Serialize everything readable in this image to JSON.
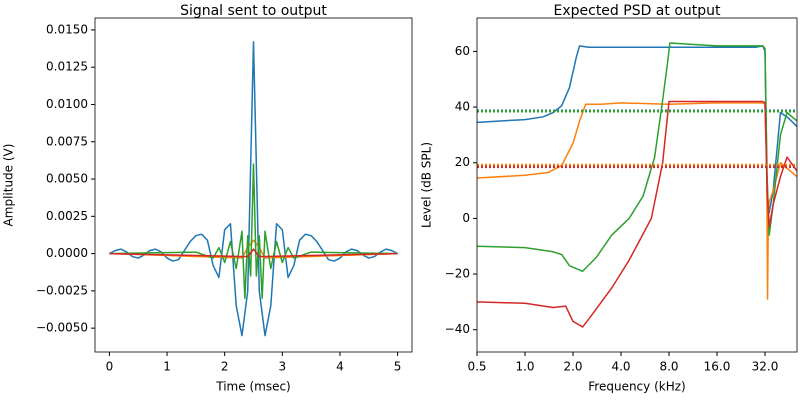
{
  "chart_data": [
    {
      "type": "line",
      "title": "Signal sent to output",
      "xlabel": "Time (msec)",
      "ylabel": "Amplitude (V)",
      "xlim": [
        -0.25,
        5.25
      ],
      "ylim": [
        -0.0066,
        0.0158
      ],
      "xticks": [
        0,
        1,
        2,
        3,
        4,
        5
      ],
      "yticks": [
        {
          "value": -0.005,
          "label": "−0.0050"
        },
        {
          "value": -0.0025,
          "label": "−0.0025"
        },
        {
          "value": 0,
          "label": "0.0000"
        },
        {
          "value": 0.0025,
          "label": "0.0025"
        },
        {
          "value": 0.005,
          "label": "0.0050"
        },
        {
          "value": 0.0075,
          "label": "0.0075"
        },
        {
          "value": 0.01,
          "label": "0.0100"
        },
        {
          "value": 0.0125,
          "label": "0.0125"
        },
        {
          "value": 0.015,
          "label": "0.0150"
        }
      ],
      "series": [
        {
          "color": "#1f77b4",
          "x": [
            0,
            0.1,
            0.2,
            0.3,
            0.4,
            0.5,
            0.6,
            0.7,
            0.8,
            0.9,
            1.0,
            1.1,
            1.2,
            1.3,
            1.4,
            1.5,
            1.6,
            1.7,
            1.8,
            1.9,
            2.0,
            2.1,
            2.2,
            2.3,
            2.4,
            2.5,
            2.6,
            2.7,
            2.8,
            2.9,
            3.0,
            3.1,
            3.2,
            3.3,
            3.4,
            3.5,
            3.6,
            3.7,
            3.8,
            3.9,
            4.0,
            4.1,
            4.2,
            4.3,
            4.4,
            4.5,
            4.6,
            4.7,
            4.8,
            4.9,
            5.0
          ],
          "values": [
            0,
            0.0002,
            0.0003,
            0.0001,
            -0.0002,
            -0.0003,
            -0.0001,
            0.0002,
            0.0003,
            0.0001,
            -0.0003,
            -0.0005,
            -0.0004,
            0.0002,
            0.0008,
            0.0012,
            0.0013,
            0.0009,
            -0.0008,
            -0.0016,
            0.0016,
            0.002,
            -0.0035,
            -0.0055,
            -0.0025,
            0.0142,
            -0.0025,
            -0.0055,
            -0.0035,
            0.002,
            0.0016,
            -0.0016,
            -0.0008,
            0.0009,
            0.0013,
            0.0012,
            0.0008,
            0.0002,
            -0.0004,
            -0.0005,
            -0.0003,
            0.0001,
            0.0003,
            0.0002,
            -0.0001,
            -0.0003,
            -0.0002,
            0.0001,
            0.0003,
            0.0002,
            0
          ]
        },
        {
          "color": "#ff7f0e",
          "x": [
            0,
            2.3,
            2.4,
            2.5,
            2.6,
            2.7,
            5
          ],
          "values": [
            0,
            -0.0003,
            0.0004,
            0.0009,
            0.0004,
            -0.0003,
            0
          ]
        },
        {
          "color": "#2ca02c",
          "x": [
            0,
            1.5,
            1.8,
            1.9,
            2.0,
            2.1,
            2.2,
            2.3,
            2.35,
            2.4,
            2.45,
            2.5,
            2.55,
            2.6,
            2.65,
            2.7,
            2.8,
            2.9,
            3.0,
            3.1,
            3.2,
            3.5,
            5
          ],
          "values": [
            0,
            0.0001,
            -0.0003,
            0.0004,
            -0.0006,
            0.0008,
            -0.001,
            0.0015,
            -0.003,
            0.0012,
            -0.0015,
            0.006,
            -0.0015,
            0.0012,
            -0.003,
            0.0015,
            -0.001,
            0.0008,
            -0.0006,
            0.0004,
            -0.0003,
            0.0001,
            0
          ]
        },
        {
          "color": "#d62728",
          "x": [
            0,
            2.4,
            2.5,
            2.6,
            5
          ],
          "values": [
            0,
            -0.0002,
            0.0003,
            -0.0002,
            0
          ]
        }
      ]
    },
    {
      "type": "line",
      "title": "Expected PSD at output",
      "xlabel": "Frequency (kHz)",
      "ylabel": "Level (dB SPL)",
      "xscale": "log",
      "xlim": [
        0.5,
        50.8
      ],
      "ylim": [
        -48,
        72
      ],
      "xticks": [
        0.5,
        {
          "value": 1,
          "label": "1.0"
        },
        {
          "value": 2,
          "label": "2.0"
        },
        {
          "value": 4,
          "label": "4.0"
        },
        {
          "value": 8,
          "label": "8.0"
        },
        {
          "value": 16,
          "label": "16.0"
        },
        {
          "value": 32,
          "label": "32.0"
        }
      ],
      "yticks": [
        {
          "value": -40,
          "label": "−40"
        },
        {
          "value": -20,
          "label": "−20"
        },
        0,
        20,
        40,
        60
      ],
      "series": [
        {
          "color": "#1f77b4",
          "x": [
            0.5,
            0.7,
            1.0,
            1.3,
            1.5,
            1.7,
            1.9,
            2.1,
            2.2,
            2.5,
            3,
            4,
            6,
            8,
            12,
            16,
            20,
            24,
            28,
            31,
            32,
            33,
            34,
            36,
            40,
            45,
            50.8
          ],
          "values": [
            34.5,
            35,
            35.5,
            36.5,
            38,
            40.5,
            47,
            58,
            62,
            61.5,
            61.5,
            61.5,
            61.5,
            61.5,
            61.5,
            61.5,
            61.5,
            61.5,
            61.5,
            62,
            60,
            8,
            2,
            10,
            38,
            36,
            33
          ]
        },
        {
          "color": "#ff7f0e",
          "x": [
            0.5,
            1,
            1.4,
            1.7,
            2,
            2.2,
            2.4,
            3,
            4,
            8,
            16,
            31,
            32,
            32.8,
            33.2,
            33.6,
            34,
            36,
            40,
            44,
            50.8
          ],
          "values": [
            14.5,
            15.5,
            16.5,
            19,
            27,
            35,
            41,
            41,
            41.5,
            41,
            41.5,
            41.5,
            41,
            20,
            -29,
            2,
            6,
            10,
            20,
            18,
            15
          ]
        },
        {
          "color": "#2ca02c",
          "x": [
            0.5,
            1,
            1.5,
            1.7,
            1.9,
            2.3,
            2.8,
            3.5,
            4.5,
            5.5,
            6.5,
            7.2,
            7.8,
            8.1,
            16,
            31,
            32,
            33,
            34,
            36,
            40,
            44,
            50.8
          ],
          "values": [
            -10,
            -10.5,
            -12,
            -13,
            -17,
            -19,
            -14,
            -6,
            0,
            8,
            22,
            40,
            55,
            63,
            62,
            62,
            61,
            15,
            -6,
            5,
            30,
            38,
            35
          ]
        },
        {
          "color": "#d62728",
          "x": [
            0.5,
            1,
            1.5,
            1.8,
            2,
            2.3,
            2.6,
            3.5,
            4.5,
            6.2,
            7.3,
            8,
            16,
            31,
            32,
            33,
            34,
            36,
            40,
            44,
            50.8
          ],
          "values": [
            -30,
            -30.5,
            -32,
            -31.5,
            -37,
            -39,
            -35,
            -25,
            -15,
            0,
            20,
            42,
            42,
            42,
            41.5,
            10,
            -3,
            5,
            15,
            22,
            17
          ]
        },
        {
          "color": "#1f77b4",
          "dotted": true,
          "x": [
            0.5,
            50.8
          ],
          "values": [
            38.7,
            38.7
          ]
        },
        {
          "color": "#ff7f0e",
          "dotted": true,
          "x": [
            0.5,
            50.8
          ],
          "values": [
            19.2,
            19.2
          ]
        },
        {
          "color": "#2ca02c",
          "dotted": true,
          "x": [
            0.5,
            50.8
          ],
          "values": [
            38.5,
            38.5
          ]
        },
        {
          "color": "#d62728",
          "dotted": true,
          "x": [
            0.5,
            50.8
          ],
          "values": [
            18.5,
            18.5
          ]
        }
      ]
    }
  ]
}
